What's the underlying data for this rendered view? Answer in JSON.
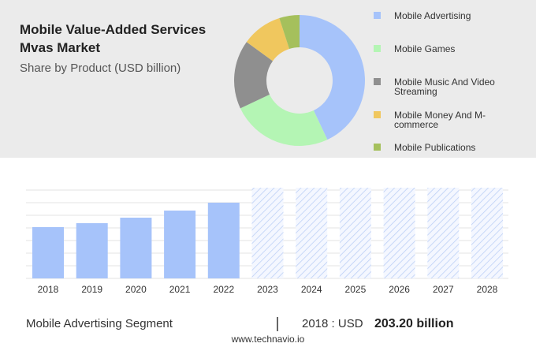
{
  "chart_data": [
    {
      "type": "pie",
      "title": "Mobile Value-Added Services Mvas Market",
      "subtitle": "Share by Product (USD billion)",
      "categories": [
        "Mobile Advertising",
        "Mobile Games",
        "Mobile Music And Video Streaming",
        "Mobile Money And M-commerce",
        "Mobile Publications"
      ],
      "values": [
        43,
        25,
        17,
        10,
        5
      ],
      "colors": [
        "#a6c3fa",
        "#b4f5b4",
        "#8f8f8f",
        "#f0c75e",
        "#a5c05c"
      ],
      "donut": true,
      "legend": "right"
    },
    {
      "type": "bar",
      "categories": [
        "2018",
        "2019",
        "2020",
        "2021",
        "2022",
        "2023",
        "2024",
        "2025",
        "2026",
        "2027",
        "2028"
      ],
      "values": [
        65,
        70,
        77,
        86,
        96,
        null,
        null,
        null,
        null,
        null,
        null
      ],
      "color": "#a6c3fa",
      "ylim": [
        0,
        112
      ],
      "grid": true
    }
  ],
  "footer": {
    "segment": "Mobile Advertising Segment",
    "separator": "|",
    "year_label": "2018 : USD",
    "value": "203.20 billion",
    "source": "www.technavio.io"
  }
}
